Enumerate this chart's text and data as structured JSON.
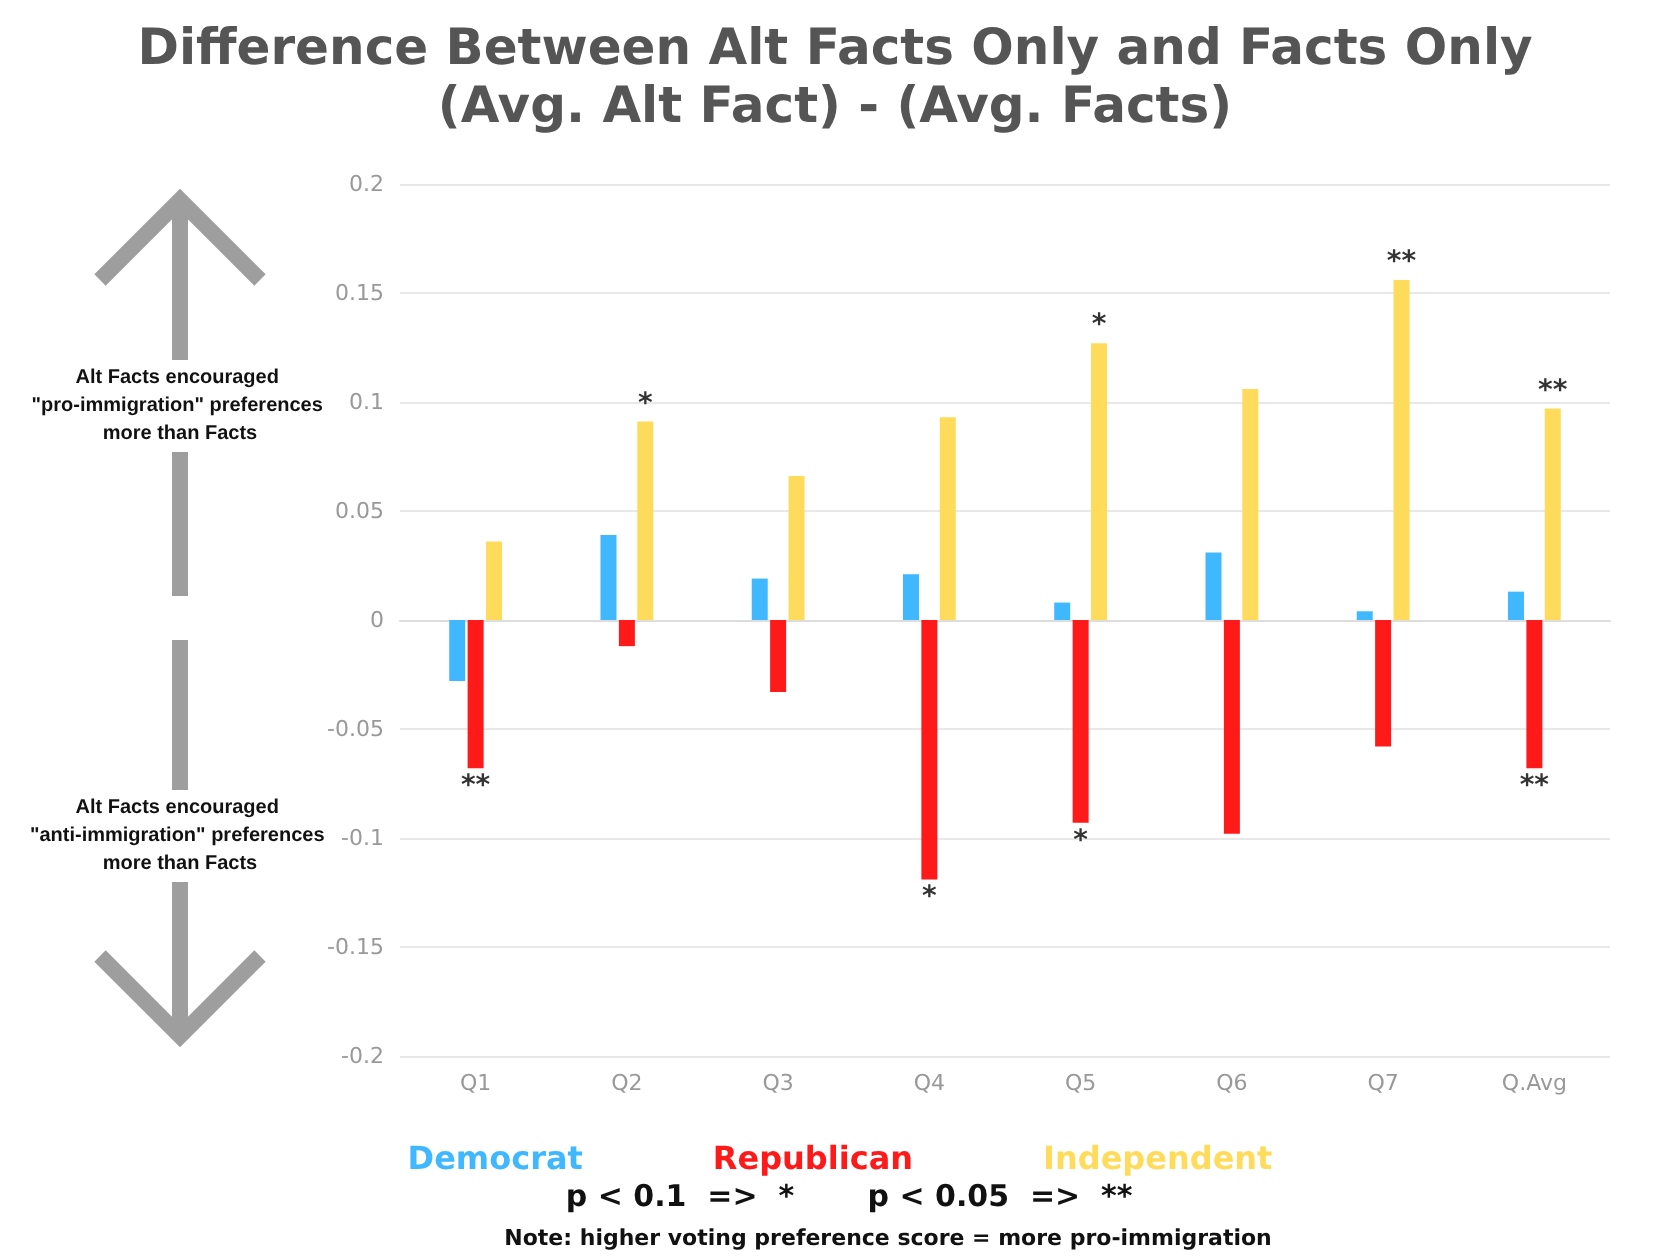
{
  "chart_data": {
    "type": "bar",
    "title": "Difference Between Alt Facts Only and Facts Only",
    "subtitle": "(Avg. Alt Fact) - (Avg. Facts)",
    "categories": [
      "Q1",
      "Q2",
      "Q3",
      "Q4",
      "Q5",
      "Q6",
      "Q7",
      "Q.Avg"
    ],
    "series": [
      {
        "name": "Democrat",
        "color": "#3fb8ff",
        "values": [
          -0.028,
          0.039,
          0.019,
          0.021,
          0.008,
          0.031,
          0.004,
          0.013
        ]
      },
      {
        "name": "Republican",
        "color": "#ff1a1a",
        "values": [
          -0.068,
          -0.012,
          -0.033,
          -0.119,
          -0.093,
          -0.098,
          -0.058,
          -0.068
        ],
        "value_labels": [
          "**",
          null,
          null,
          "*",
          "*",
          null,
          null,
          "**"
        ]
      },
      {
        "name": "Independent",
        "color": "#ffdb5c",
        "values": [
          0.036,
          0.091,
          0.066,
          0.093,
          0.127,
          0.106,
          0.156,
          0.097
        ],
        "value_labels": [
          null,
          "*",
          null,
          null,
          "*",
          null,
          "**",
          "**"
        ]
      }
    ],
    "ylim": [
      -0.2,
      0.2
    ],
    "yticks": [
      -0.2,
      -0.15,
      -0.1,
      -0.05,
      0,
      0.05,
      0.1,
      0.15,
      0.2
    ],
    "grid": "y",
    "legend": "bottom",
    "annotations": [
      "Alt Facts encouraged \"pro-immigration\" preferences more than Facts",
      "Alt Facts encouraged \"anti-immigration\" preferences more than Facts",
      "p < 0.1  =>  *",
      "p < 0.05  =>  **",
      "Note: higher voting preference score = more pro-immigration"
    ]
  }
}
